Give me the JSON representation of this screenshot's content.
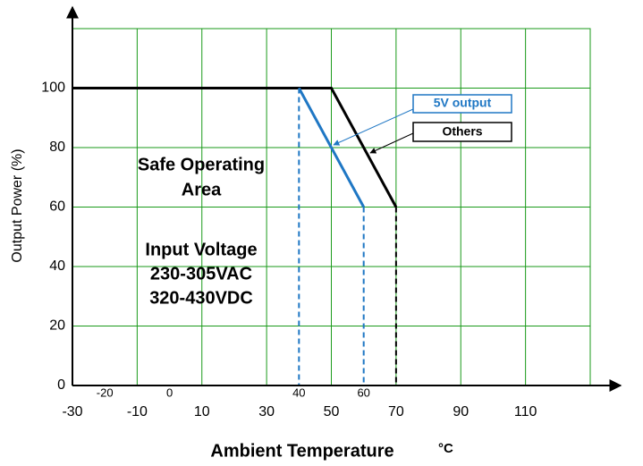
{
  "chart_data": {
    "type": "line",
    "xlabel": "Ambient Temperature",
    "xunit": "°C",
    "ylabel": "Output Power (%)",
    "xlim": [
      -30,
      130
    ],
    "ylim": [
      0,
      120
    ],
    "xticks": [
      -30,
      -10,
      10,
      30,
      50,
      70,
      90,
      110
    ],
    "xticks_minor": [
      -20,
      0,
      40,
      60
    ],
    "yticks": [
      0,
      20,
      40,
      60,
      80,
      100
    ],
    "grid": true,
    "grid_color": "#1a9a1a",
    "series": [
      {
        "name": "Others",
        "color": "#000000",
        "x": [
          -30,
          50,
          70
        ],
        "values": [
          100,
          100,
          60
        ]
      },
      {
        "name": "5V output",
        "color": "#1f77c4",
        "x": [
          40,
          60
        ],
        "values": [
          100,
          60
        ]
      }
    ],
    "annotations": [
      "Safe Operating",
      "Area",
      "Input Voltage",
      "230-305VAC",
      "320-430VDC"
    ]
  }
}
